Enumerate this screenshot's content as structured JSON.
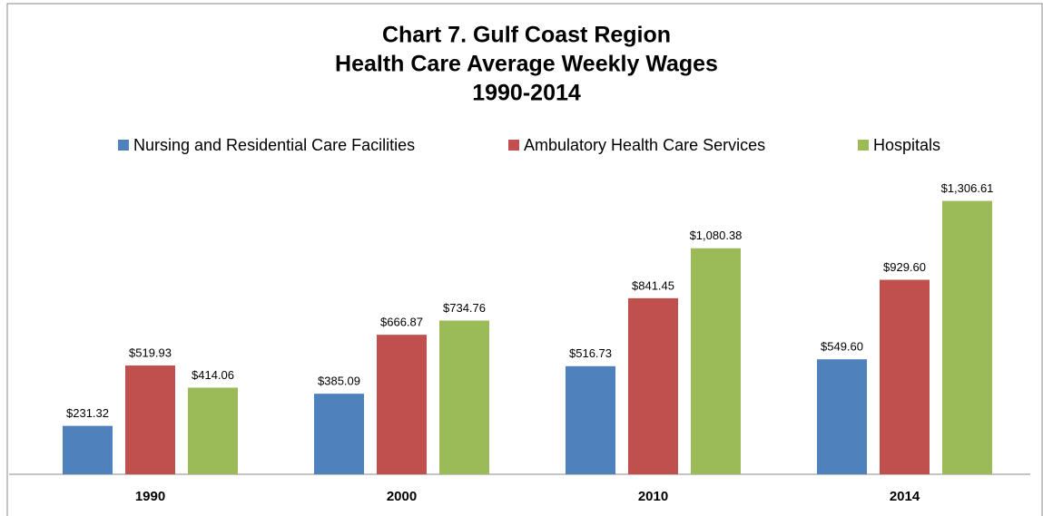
{
  "chart_data": {
    "type": "bar",
    "title": [
      "Chart 7. Gulf Coast Region",
      "Health Care Average Weekly Wages",
      "1990-2014"
    ],
    "categories": [
      "1990",
      "2000",
      "2010",
      "2014"
    ],
    "series": [
      {
        "name": "Nursing and Residential  Care Facilities",
        "color": "#4f81bd",
        "values": [
          231.32,
          385.09,
          516.73,
          549.6
        ],
        "value_labels": [
          "$231.32",
          "$385.09",
          "$516.73",
          "$549.60"
        ]
      },
      {
        "name": "Ambulatory Health Care Services",
        "color": "#c0504d",
        "values": [
          519.93,
          666.87,
          841.45,
          929.6
        ],
        "value_labels": [
          "$519.93",
          "$666.87",
          "$841.45",
          "$929.60"
        ]
      },
      {
        "name": "Hospitals",
        "color": "#9bbb59",
        "values": [
          414.06,
          734.76,
          1080.38,
          1306.61
        ],
        "value_labels": [
          "$414.06",
          "$734.76",
          "$1,080.38",
          "$1,306.61"
        ]
      }
    ],
    "ylim": [
      0,
      1400
    ],
    "legend": "top"
  }
}
